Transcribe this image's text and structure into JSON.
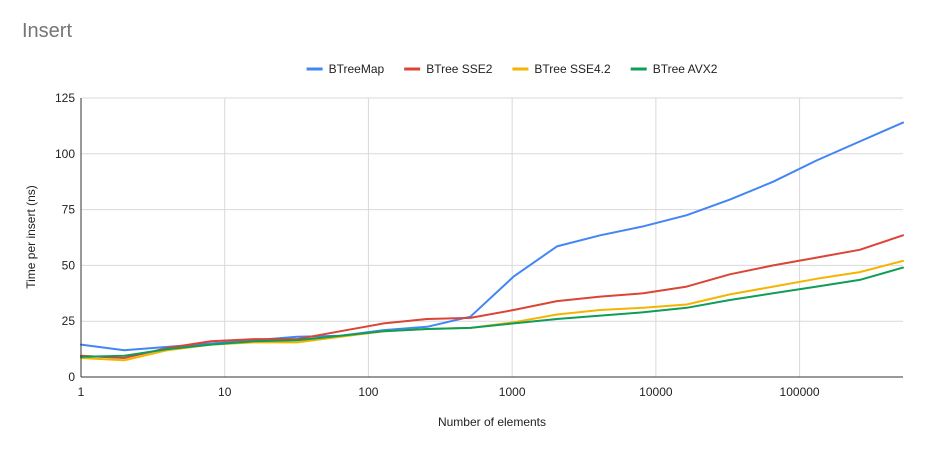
{
  "chart_data": {
    "type": "line",
    "title": "Insert",
    "xlabel": "Number of elements",
    "ylabel": "Time per insert (ns)",
    "xscale": "log",
    "xlim": [
      1,
      524288
    ],
    "ylim": [
      0,
      125
    ],
    "grid": true,
    "legend_position": "top",
    "x_ticks": [
      "1",
      "10",
      "100",
      "1000",
      "10000",
      "100000"
    ],
    "y_ticks": [
      "0",
      "25",
      "50",
      "75",
      "100",
      "125"
    ],
    "x": [
      1,
      2,
      4,
      8,
      16,
      32,
      64,
      128,
      256,
      512,
      1024,
      2048,
      4096,
      8192,
      16384,
      32768,
      65536,
      131072,
      262144,
      524288
    ],
    "series": [
      {
        "name": "BTreeMap",
        "color": "#4285f4",
        "values": [
          14.5,
          12,
          13.5,
          15,
          16.5,
          18,
          18.5,
          21,
          22.5,
          27,
          45,
          58.5,
          63.5,
          67.5,
          72.5,
          79.5,
          87.5,
          97,
          105.5,
          114
        ]
      },
      {
        "name": "BTree SSE2",
        "color": "#db4437",
        "values": [
          9.5,
          8.5,
          13,
          16,
          17,
          17,
          20.5,
          24,
          26,
          26.5,
          30,
          34,
          36,
          37.5,
          40.5,
          46,
          50,
          53.5,
          57,
          63.5
        ]
      },
      {
        "name": "BTree SSE4.2",
        "color": "#f4b400",
        "values": [
          8.5,
          7.5,
          12,
          14.5,
          15.5,
          15.5,
          18,
          20.5,
          21.5,
          22,
          24.5,
          28,
          30,
          31,
          32.5,
          37,
          40.5,
          44,
          47,
          52
        ]
      },
      {
        "name": "BTree AVX2",
        "color": "#0f9d58",
        "values": [
          9,
          9.5,
          12.5,
          14.5,
          16,
          16.5,
          18.5,
          20.5,
          21.5,
          22,
          24,
          26,
          27.5,
          29,
          31,
          34.5,
          37.5,
          40.5,
          43.5,
          49
        ]
      }
    ]
  }
}
